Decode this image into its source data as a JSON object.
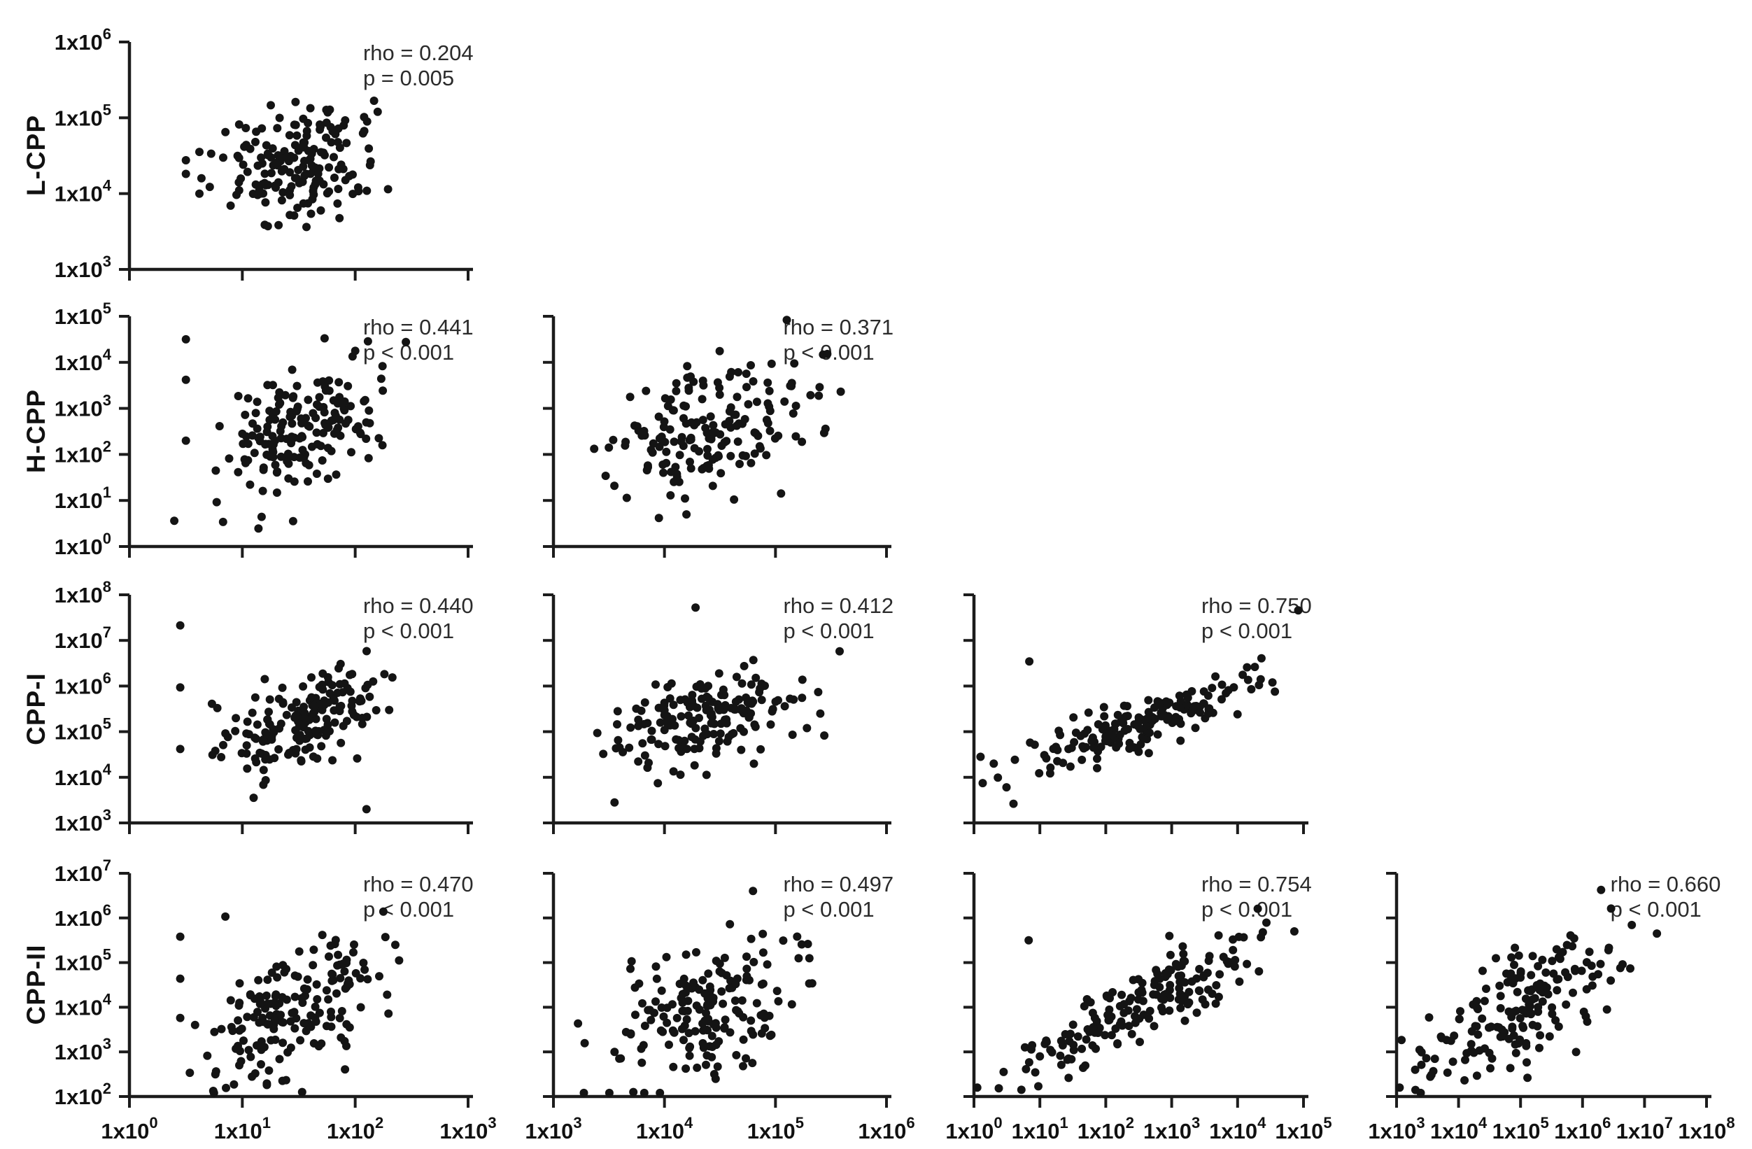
{
  "figure": {
    "background": "#ffffff",
    "point_color": "#141414",
    "axis_color": "#1c1c1c",
    "tick_label_color": "#111111",
    "stats_text_color": "#2b2b2b"
  },
  "chart_data": {
    "type": "scatter",
    "layout": "lower-triangular correlation matrix, 4 rows x 4 cols, log-log axes",
    "grid": false,
    "rows": [
      {
        "label": "L-CPP",
        "log_range": [
          3,
          6
        ],
        "ticks": [
          "1x10^3",
          "1x10^4",
          "1x10^5",
          "1x10^6"
        ]
      },
      {
        "label": "H-CPP",
        "log_range": [
          0,
          5
        ],
        "ticks": [
          "1x10^0",
          "1x10^1",
          "1x10^2",
          "1x10^3",
          "1x10^4",
          "1x10^5"
        ]
      },
      {
        "label": "CPP-I",
        "log_range": [
          3,
          8
        ],
        "ticks": [
          "1x10^3",
          "1x10^4",
          "1x10^5",
          "1x10^6",
          "1x10^7",
          "1x10^8"
        ]
      },
      {
        "label": "CPP-II",
        "log_range": [
          2,
          7
        ],
        "ticks": [
          "1x10^2",
          "1x10^3",
          "1x10^4",
          "1x10^5",
          "1x10^6",
          "1x10^7"
        ]
      }
    ],
    "cols": [
      {
        "log_range": [
          0,
          3
        ],
        "ticks": [
          "1x10^0",
          "1x10^1",
          "1x10^2",
          "1x10^3"
        ]
      },
      {
        "log_range": [
          3,
          6
        ],
        "ticks": [
          "1x10^3",
          "1x10^4",
          "1x10^5",
          "1x10^6"
        ]
      },
      {
        "log_range": [
          0,
          5
        ],
        "ticks": [
          "1x10^0",
          "1x10^1",
          "1x10^2",
          "1x10^3",
          "1x10^4",
          "1x10^5"
        ]
      },
      {
        "log_range": [
          3,
          8
        ],
        "ticks": [
          "1x10^3",
          "1x10^4",
          "1x10^5",
          "1x10^6",
          "1x10^7",
          "1x10^8"
        ]
      }
    ],
    "panels": [
      {
        "row": 0,
        "col": 0,
        "rho_label": "rho = 0.204",
        "p_label": "p = 0.005",
        "n": 175,
        "seed": 101,
        "cloud": {
          "mx": 1.52,
          "sx": 0.36,
          "my": 4.42,
          "sy": 0.37,
          "r": 0.2
        },
        "extra_points": [
          [
            0.5,
            4.44
          ],
          [
            0.5,
            4.26
          ],
          [
            0.62,
            4.55
          ],
          [
            0.62,
            4.0
          ]
        ]
      },
      {
        "row": 1,
        "col": 0,
        "rho_label": "rho = 0.441",
        "p_label": "p < 0.001",
        "n": 175,
        "seed": 202,
        "cloud": {
          "mx": 1.52,
          "sx": 0.36,
          "my": 2.55,
          "sy": 0.72,
          "r": 0.44
        },
        "extra_points": [
          [
            0.5,
            4.5
          ],
          [
            0.5,
            3.62
          ],
          [
            0.5,
            2.3
          ],
          [
            2.0,
            4.25
          ],
          [
            1.45,
            0.55
          ]
        ]
      },
      {
        "row": 1,
        "col": 1,
        "rho_label": "rho = 0.371",
        "p_label": "p < 0.001",
        "n": 175,
        "seed": 303,
        "cloud": {
          "mx": 4.38,
          "sx": 0.42,
          "my": 2.55,
          "sy": 0.72,
          "r": 0.38
        },
        "extra_points": [
          [
            3.95,
            0.62
          ],
          [
            5.05,
            1.15
          ]
        ]
      },
      {
        "row": 2,
        "col": 0,
        "rho_label": "rho = 0.440",
        "p_label": "p < 0.001",
        "n": 175,
        "seed": 404,
        "cloud": {
          "mx": 1.52,
          "sx": 0.36,
          "my": 5.2,
          "sy": 0.52,
          "r": 0.44
        },
        "extra_points": [
          [
            0.45,
            7.33
          ],
          [
            0.45,
            5.97
          ],
          [
            0.45,
            4.62
          ],
          [
            1.1,
            3.55
          ],
          [
            2.1,
            3.3
          ]
        ]
      },
      {
        "row": 2,
        "col": 1,
        "rho_label": "rho = 0.412",
        "p_label": "p < 0.001",
        "n": 175,
        "seed": 505,
        "cloud": {
          "mx": 4.38,
          "sx": 0.42,
          "my": 5.2,
          "sy": 0.52,
          "r": 0.41
        },
        "extra_points": [
          [
            4.28,
            7.72
          ],
          [
            3.55,
            3.45
          ]
        ]
      },
      {
        "row": 2,
        "col": 2,
        "rho_label": "rho = 0.750",
        "p_label": "p < 0.001",
        "n": 175,
        "seed": 606,
        "cloud": {
          "mx": 2.55,
          "sx": 0.88,
          "my": 5.2,
          "sy": 0.5,
          "r": 0.85
        },
        "extra_points": [
          [
            4.92,
            7.66
          ],
          [
            0.84,
            6.54
          ],
          [
            0.6,
            3.42
          ],
          [
            0.3,
            4.3
          ],
          [
            0.1,
            4.45
          ]
        ]
      },
      {
        "row": 3,
        "col": 0,
        "rho_label": "rho = 0.470",
        "p_label": "p < 0.001",
        "n": 175,
        "seed": 707,
        "cloud": {
          "mx": 1.52,
          "sx": 0.36,
          "my": 4.05,
          "sy": 0.82,
          "r": 0.47
        },
        "extra_points": [
          [
            0.45,
            5.58
          ],
          [
            0.45,
            4.64
          ],
          [
            0.45,
            3.76
          ],
          [
            1.53,
            2.1
          ],
          [
            0.85,
            6.03
          ]
        ]
      },
      {
        "row": 3,
        "col": 1,
        "rho_label": "rho = 0.497",
        "p_label": "p < 0.001",
        "n": 175,
        "seed": 808,
        "cloud": {
          "mx": 4.38,
          "sx": 0.42,
          "my": 4.05,
          "sy": 0.82,
          "r": 0.5
        },
        "extra_points": [
          [
            3.72,
            2.1
          ],
          [
            3.55,
            3.0
          ]
        ]
      },
      {
        "row": 3,
        "col": 2,
        "rho_label": "rho = 0.754",
        "p_label": "p < 0.001",
        "n": 175,
        "seed": 909,
        "cloud": {
          "mx": 2.55,
          "sx": 0.88,
          "my": 4.05,
          "sy": 0.82,
          "r": 0.85
        },
        "extra_points": [
          [
            0.05,
            2.2
          ],
          [
            0.45,
            2.55
          ],
          [
            0.72,
            2.15
          ],
          [
            0.83,
            5.5
          ],
          [
            1.0,
            2.9
          ]
        ]
      },
      {
        "row": 3,
        "col": 3,
        "rho_label": "rho = 0.660",
        "p_label": "p < 0.001",
        "n": 175,
        "seed": 1010,
        "cloud": {
          "mx": 5.1,
          "sx": 0.78,
          "my": 4.05,
          "sy": 0.8,
          "r": 0.7
        },
        "extra_points": [
          [
            7.2,
            5.65
          ],
          [
            3.05,
            2.2
          ],
          [
            3.3,
            2.6
          ]
        ]
      }
    ]
  }
}
